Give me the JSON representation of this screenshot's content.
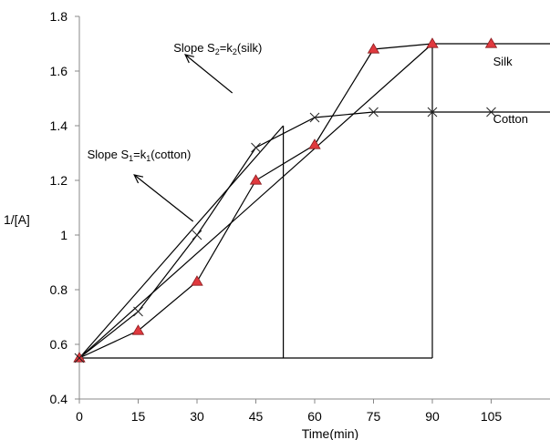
{
  "chart_data": {
    "type": "line",
    "title": "",
    "xlabel": "Time(min)",
    "ylabel": "1/[A]",
    "xlim": [
      0,
      120
    ],
    "ylim": [
      0.4,
      1.8
    ],
    "x_ticks": [
      0,
      15,
      30,
      45,
      60,
      75,
      90,
      105
    ],
    "y_ticks": [
      0.4,
      0.6,
      0.8,
      1.0,
      1.2,
      1.4,
      1.6,
      1.8
    ],
    "y_tick_labels": [
      "0.4",
      "0.6",
      "0.8",
      "1",
      "1.2",
      "1.4",
      "1.6",
      "1.8"
    ],
    "grid": false,
    "series": [
      {
        "name": "Silk",
        "marker": "triangle",
        "marker_color": "#e0393e",
        "x": [
          0,
          15,
          30,
          45,
          60,
          75,
          90,
          105,
          120
        ],
        "y": [
          0.55,
          0.65,
          0.83,
          1.2,
          1.33,
          1.68,
          1.7,
          1.7,
          1.7
        ]
      },
      {
        "name": "Cotton",
        "marker": "x",
        "x": [
          0,
          15,
          30,
          45,
          60,
          75,
          90,
          105,
          120
        ],
        "y": [
          0.55,
          0.72,
          1.0,
          1.32,
          1.43,
          1.45,
          1.45,
          1.45,
          1.45
        ]
      }
    ],
    "slope_lines": [
      {
        "name": "cotton-slope",
        "x": [
          0,
          52
        ],
        "y": [
          0.55,
          1.4
        ],
        "drop_x": 52
      },
      {
        "name": "silk-slope",
        "x": [
          0,
          90
        ],
        "y": [
          0.55,
          1.7
        ],
        "drop_x": 90
      }
    ],
    "annotations": {
      "silk_slope": {
        "prefix": "Slope S",
        "sub1": "2",
        "mid": "=k",
        "sub2": "2",
        "suffix": "(silk)",
        "data_x": 24,
        "data_y": 1.67,
        "arrow_from": [
          39,
          1.52
        ],
        "arrow_to": [
          27,
          1.66
        ]
      },
      "cotton_slope": {
        "prefix": "Slope S",
        "sub1": "1",
        "mid": "=k",
        "sub2": "1",
        "suffix": "(cotton)",
        "data_x": 2,
        "data_y": 1.28,
        "arrow_from": [
          29,
          1.05
        ],
        "arrow_to": [
          14,
          1.22
        ]
      },
      "silk_label": {
        "text": "Silk",
        "data_x": 105.5,
        "data_y": 1.62
      },
      "cotton_label": {
        "text": "Cotton",
        "data_x": 105.5,
        "data_y": 1.41
      }
    },
    "colors": {
      "line": "#000000",
      "silk_marker": "#e0393e"
    }
  }
}
